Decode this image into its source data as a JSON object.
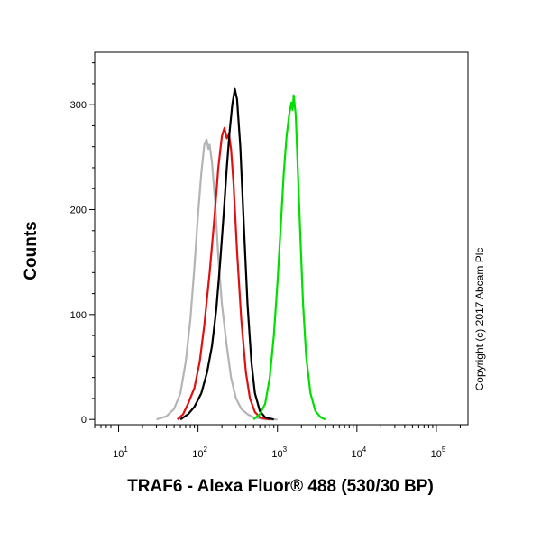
{
  "chart_data": {
    "type": "line",
    "xlabel": "TRAF6 - Alexa Fluor® 488 (530/30 BP)",
    "ylabel": "Counts",
    "x_scale": "log",
    "xlim": [
      5,
      250000
    ],
    "ylim": [
      -5,
      350
    ],
    "x_ticks": [
      {
        "value": 10,
        "base": "10",
        "exp": "1"
      },
      {
        "value": 100,
        "base": "10",
        "exp": "2"
      },
      {
        "value": 1000,
        "base": "10",
        "exp": "3"
      },
      {
        "value": 10000,
        "base": "10",
        "exp": "4"
      },
      {
        "value": 100000,
        "base": "10",
        "exp": "5"
      }
    ],
    "y_ticks": [
      {
        "value": 0,
        "label": "0"
      },
      {
        "value": 100,
        "label": "100"
      },
      {
        "value": 200,
        "label": "200"
      },
      {
        "value": 300,
        "label": "300"
      }
    ],
    "copyright": "Copyright (c) 2017 Abcam Plc",
    "series": [
      {
        "color": "#b4b4b4",
        "x": [
          30,
          40,
          50,
          60,
          70,
          80,
          90,
          100,
          110,
          120,
          128,
          135,
          140,
          150,
          165,
          180,
          200,
          230,
          260,
          300,
          350,
          420,
          500,
          700,
          1000
        ],
        "y": [
          0,
          3,
          10,
          25,
          55,
          95,
          145,
          195,
          235,
          262,
          267,
          258,
          262,
          245,
          205,
          155,
          110,
          70,
          40,
          20,
          10,
          5,
          2,
          0,
          0
        ]
      },
      {
        "color": "#e01010",
        "x": [
          55,
          65,
          75,
          90,
          105,
          120,
          140,
          160,
          180,
          200,
          215,
          230,
          245,
          260,
          280,
          310,
          350,
          400,
          450,
          520,
          600,
          800
        ],
        "y": [
          0,
          5,
          15,
          30,
          55,
          90,
          140,
          190,
          240,
          270,
          278,
          268,
          272,
          258,
          225,
          160,
          95,
          45,
          20,
          7,
          2,
          0
        ]
      },
      {
        "color": "#000000",
        "x": [
          60,
          75,
          90,
          110,
          130,
          150,
          170,
          190,
          210,
          230,
          250,
          270,
          290,
          310,
          340,
          380,
          420,
          470,
          520,
          600,
          700,
          900
        ],
        "y": [
          0,
          5,
          12,
          25,
          45,
          70,
          105,
          150,
          195,
          240,
          275,
          300,
          315,
          305,
          260,
          180,
          110,
          55,
          25,
          8,
          2,
          0
        ]
      },
      {
        "color": "#00e000",
        "x": [
          500,
          600,
          700,
          800,
          900,
          1000,
          1100,
          1200,
          1300,
          1400,
          1500,
          1550,
          1600,
          1700,
          1800,
          1950,
          2100,
          2300,
          2600,
          3000,
          3500,
          4000
        ],
        "y": [
          0,
          5,
          15,
          40,
          80,
          130,
          185,
          235,
          270,
          290,
          302,
          295,
          309,
          290,
          240,
          170,
          110,
          60,
          25,
          8,
          2,
          0
        ]
      }
    ]
  }
}
